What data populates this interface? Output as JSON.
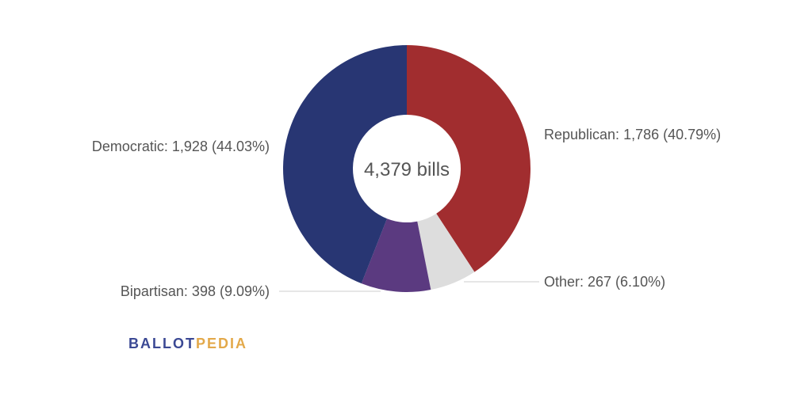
{
  "chart_data": {
    "type": "pie",
    "center_label": "4,379 bills",
    "slices": [
      {
        "name": "Republican",
        "value": 1786,
        "percent": 40.79,
        "label": "Republican: 1,786 (40.79%)",
        "color": "#a12d2f"
      },
      {
        "name": "Other",
        "value": 267,
        "percent": 6.1,
        "label": "Other: 267 (6.10%)",
        "color": "#dddddd"
      },
      {
        "name": "Bipartisan",
        "value": 398,
        "percent": 9.09,
        "label": "Bipartisan: 398 (9.09%)",
        "color": "#5b3a80"
      },
      {
        "name": "Democratic",
        "value": 1928,
        "percent": 44.03,
        "label": "Democratic: 1,928 (44.03%)",
        "color": "#283673"
      }
    ],
    "leader_line_color": "#cccccc",
    "label_color": "#555555"
  },
  "logo": {
    "part1": "BALLOT",
    "part2": "PEDIA",
    "color1": "#3b4994",
    "color2": "#e3a94a"
  }
}
